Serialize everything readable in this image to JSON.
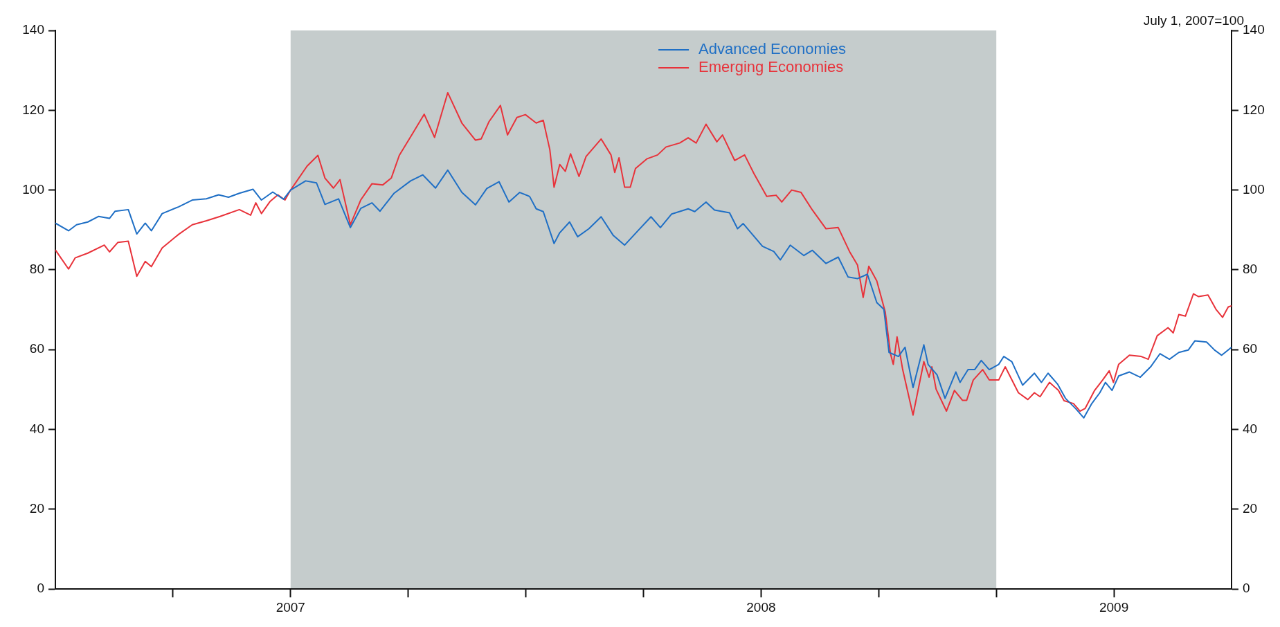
{
  "chart_data": {
    "type": "line",
    "annotations": [
      "July 1, 2007=100"
    ],
    "xlim": [
      2007,
      2009.5
    ],
    "xticks": [
      {
        "value": 2007.25,
        "label": null
      },
      {
        "value": 2007.5,
        "label": "2007"
      },
      {
        "value": 2007.75,
        "label": null
      },
      {
        "value": 2008,
        "label": null
      },
      {
        "value": 2008.25,
        "label": null
      },
      {
        "value": 2008.5,
        "label": "2008"
      },
      {
        "value": 2008.75,
        "label": null
      },
      {
        "value": 2009,
        "label": null
      },
      {
        "value": 2009.25,
        "label": "2009"
      }
    ],
    "ylim": [
      0,
      140
    ],
    "yticks": [
      0,
      20,
      40,
      60,
      80,
      100,
      120,
      140
    ],
    "y2lim": [
      0,
      140
    ],
    "y2ticks": [
      0,
      20,
      40,
      60,
      80,
      100,
      120,
      140
    ],
    "bands": [
      {
        "axis": "x",
        "from": 2007.5,
        "to": 2009,
        "color": "#c5cccc"
      }
    ],
    "legend": "top",
    "marker": "none",
    "line_style": "solid",
    "series": [
      {
        "name": "Advanced Economies",
        "color": "#1f6fc5",
        "x": [
          2007,
          2007.028,
          2007.045,
          2007.069,
          2007.092,
          2007.115,
          2007.127,
          2007.155,
          2007.173,
          2007.191,
          2007.204,
          2007.227,
          2007.262,
          2007.291,
          2007.321,
          2007.347,
          2007.368,
          2007.391,
          2007.42,
          2007.438,
          2007.462,
          2007.485,
          2007.5,
          2007.532,
          2007.555,
          2007.573,
          2007.602,
          2007.627,
          2007.649,
          2007.673,
          2007.69,
          2007.72,
          2007.755,
          2007.781,
          2007.808,
          2007.834,
          2007.864,
          2007.893,
          2007.917,
          2007.943,
          2007.964,
          2007.987,
          2008.008,
          2008.022,
          2008.037,
          2008.06,
          2008.072,
          2008.093,
          2008.11,
          2008.134,
          2008.16,
          2008.186,
          2008.21,
          2008.239,
          2008.266,
          2008.286,
          2008.31,
          2008.345,
          2008.359,
          2008.383,
          2008.401,
          2008.433,
          2008.45,
          2008.462,
          2008.503,
          2008.527,
          2008.541,
          2008.562,
          2008.591,
          2008.609,
          2008.638,
          2008.664,
          2008.685,
          2008.705,
          2008.726,
          2008.746,
          2008.761,
          2008.772,
          2008.792,
          2008.806,
          2008.823,
          2008.846,
          2008.855,
          2008.874,
          2008.891,
          2008.914,
          2008.923,
          2008.94,
          2008.954,
          2008.968,
          2008.985,
          2009.005,
          2009.016,
          2009.033,
          2009.056,
          2009.081,
          2009.096,
          2009.11,
          2009.13,
          2009.147,
          2009.169,
          2009.186,
          2009.203,
          2009.22,
          2009.232,
          2009.246,
          2009.26,
          2009.283,
          2009.306,
          2009.328,
          2009.348,
          2009.368,
          2009.388,
          2009.408,
          2009.422,
          2009.447,
          2009.464,
          2009.479,
          2009.5
        ],
        "values": [
          91.7,
          89.8,
          91.3,
          92,
          93.4,
          92.9,
          94.7,
          95.1,
          89,
          91.7,
          89.8,
          94.1,
          95.8,
          97.5,
          97.8,
          98.8,
          98.2,
          99.2,
          100.2,
          97.5,
          99.5,
          97.7,
          100,
          102.3,
          101.8,
          96.4,
          97.8,
          90.6,
          95.4,
          96.8,
          94.7,
          99.2,
          102.3,
          103.8,
          100.5,
          105,
          99.4,
          96.3,
          100.4,
          102.1,
          97,
          99.4,
          98.4,
          95.3,
          94.6,
          86.6,
          89.3,
          92,
          88.3,
          90.3,
          93.3,
          88.6,
          86.2,
          89.9,
          93.3,
          90.6,
          94,
          95.3,
          94.6,
          97,
          95,
          94.3,
          90.3,
          91.6,
          85.9,
          84.6,
          82.5,
          86.2,
          83.6,
          84.9,
          81.6,
          83.2,
          78.2,
          77.8,
          78.9,
          71.8,
          70.1,
          59.3,
          58.3,
          60.6,
          50.5,
          61.2,
          56.3,
          53.7,
          47.8,
          54.4,
          51.8,
          55,
          55,
          57.3,
          55,
          56.3,
          58.3,
          57,
          51.1,
          54.1,
          51.8,
          54.1,
          51.4,
          47.8,
          45.2,
          42.9,
          46.5,
          49.2,
          51.8,
          49.8,
          53.4,
          54.4,
          53.1,
          55.7,
          59,
          57.6,
          59.3,
          59.9,
          62.2,
          61.9,
          59.9,
          58.6,
          60.6
        ]
      },
      {
        "name": "Emerging Economies",
        "color": "#e8323a",
        "x": [
          2007,
          2007.028,
          2007.042,
          2007.069,
          2007.104,
          2007.115,
          2007.133,
          2007.155,
          2007.173,
          2007.191,
          2007.204,
          2007.227,
          2007.262,
          2007.291,
          2007.321,
          2007.35,
          2007.391,
          2007.415,
          2007.426,
          2007.438,
          2007.456,
          2007.473,
          2007.488,
          2007.5,
          2007.535,
          2007.558,
          2007.573,
          2007.591,
          2007.605,
          2007.627,
          2007.649,
          2007.673,
          2007.696,
          2007.714,
          2007.731,
          2007.761,
          2007.784,
          2007.806,
          2007.834,
          2007.864,
          2007.893,
          2007.905,
          2007.922,
          2007.946,
          2007.961,
          2007.981,
          2007.999,
          2008.022,
          2008.037,
          2008.051,
          2008.06,
          2008.072,
          2008.084,
          2008.095,
          2008.113,
          2008.128,
          2008.16,
          2008.181,
          2008.189,
          2008.198,
          2008.21,
          2008.222,
          2008.233,
          2008.257,
          2008.28,
          2008.298,
          2008.327,
          2008.345,
          2008.362,
          2008.383,
          2008.406,
          2008.418,
          2008.444,
          2008.465,
          2008.485,
          2008.512,
          2008.532,
          2008.544,
          2008.565,
          2008.585,
          2008.609,
          2008.638,
          2008.664,
          2008.688,
          2008.705,
          2008.717,
          2008.729,
          2008.746,
          2008.764,
          2008.775,
          2008.781,
          2008.789,
          2008.801,
          2008.823,
          2008.846,
          2008.857,
          2008.863,
          2008.872,
          2008.894,
          2008.911,
          2008.928,
          2008.937,
          2008.951,
          2008.971,
          2008.985,
          2009.005,
          2009.019,
          2009.047,
          2009.067,
          2009.081,
          2009.093,
          2009.113,
          2009.132,
          2009.144,
          2009.164,
          2009.178,
          2009.189,
          2009.209,
          2009.226,
          2009.24,
          2009.249,
          2009.26,
          2009.283,
          2009.308,
          2009.323,
          2009.342,
          2009.365,
          2009.376,
          2009.388,
          2009.402,
          2009.419,
          2009.43,
          2009.45,
          2009.467,
          2009.481,
          2009.493,
          2009.5
        ],
        "values": [
          85,
          80.2,
          83,
          84.2,
          86.2,
          84.5,
          86.9,
          87.2,
          78.4,
          82.1,
          80.8,
          85.5,
          88.9,
          91.3,
          92.3,
          93.4,
          95.1,
          93.7,
          96.8,
          94.1,
          97.1,
          98.8,
          97.5,
          100,
          106,
          108.7,
          103,
          100.5,
          102.6,
          91.3,
          97.5,
          101.6,
          101.3,
          103,
          108.7,
          114.5,
          119,
          113.2,
          124.4,
          116.8,
          112.5,
          112.8,
          117.2,
          121.2,
          113.8,
          118.2,
          118.9,
          116.8,
          117.5,
          110.1,
          100.7,
          106.4,
          104.7,
          109.1,
          103.4,
          108.4,
          112.8,
          108.8,
          104.4,
          108.1,
          100.7,
          100.7,
          105.4,
          107.8,
          108.8,
          110.8,
          111.8,
          113.1,
          111.8,
          116.5,
          112.1,
          113.8,
          107.4,
          108.8,
          104.1,
          98.4,
          98.7,
          97,
          100,
          99.4,
          95,
          90.3,
          90.6,
          84.6,
          81.2,
          73.1,
          80.9,
          77.2,
          69.4,
          59,
          56.3,
          63.2,
          55,
          43.6,
          57,
          53.1,
          55.7,
          50.1,
          44.6,
          49.8,
          47.3,
          47.3,
          52.4,
          55,
          52.4,
          52.4,
          55.7,
          49.2,
          47.5,
          49.2,
          48.2,
          51.8,
          49.8,
          47.2,
          46.5,
          44.6,
          45.3,
          49.8,
          52.4,
          54.7,
          51.8,
          56.3,
          58.6,
          58.3,
          57.6,
          63.5,
          65.5,
          64.2,
          68.8,
          68.4,
          74,
          73.3,
          73.7,
          70.1,
          68.1,
          70.7,
          71
        ]
      }
    ]
  }
}
